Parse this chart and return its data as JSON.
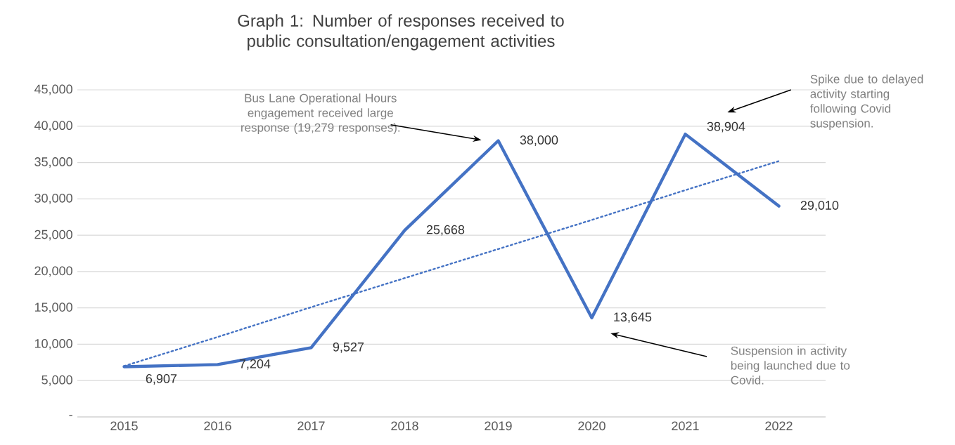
{
  "chart_data": {
    "type": "line",
    "title": "Graph 1: Number of responses received to public consultation/engagement activities",
    "categories": [
      "2015",
      "2016",
      "2017",
      "2018",
      "2019",
      "2020",
      "2021",
      "2022"
    ],
    "series": [
      {
        "color": "#4472c4",
        "values": [
          6907,
          7204,
          9527,
          25668,
          38000,
          13645,
          38904,
          29010
        ],
        "value_labels": [
          "6,907",
          "7,204",
          "9,527",
          "25,668",
          "38,000",
          "13,645",
          "38,904",
          "29,010"
        ],
        "line_style": "solid"
      },
      {
        "type": "line",
        "color": "#4472c4",
        "values": [
          7000,
          11000,
          15100,
          19100,
          23100,
          27100,
          31200,
          35200
        ],
        "line_style": "dotted"
      }
    ],
    "ylim": [
      0,
      45000
    ],
    "yticks": [
      {
        "value": 0,
        "label": "-"
      },
      {
        "value": 5000,
        "label": "5,000"
      },
      {
        "value": 10000,
        "label": "10,000"
      },
      {
        "value": 15000,
        "label": "15,000"
      },
      {
        "value": 20000,
        "label": "20,000"
      },
      {
        "value": 25000,
        "label": "25,000"
      },
      {
        "value": 30000,
        "label": "30,000"
      },
      {
        "value": 35000,
        "label": "35,000"
      },
      {
        "value": 40000,
        "label": "40,000"
      },
      {
        "value": 45000,
        "label": "45,000"
      }
    ],
    "grid": "y",
    "marker": "none",
    "annotations": [
      "Bus Lane Operational Hours engagement received large response (19,279 responses).",
      "Spike due to delayed activity starting following Covid suspension.",
      "Suspension in activity being launched due to Covid."
    ]
  }
}
